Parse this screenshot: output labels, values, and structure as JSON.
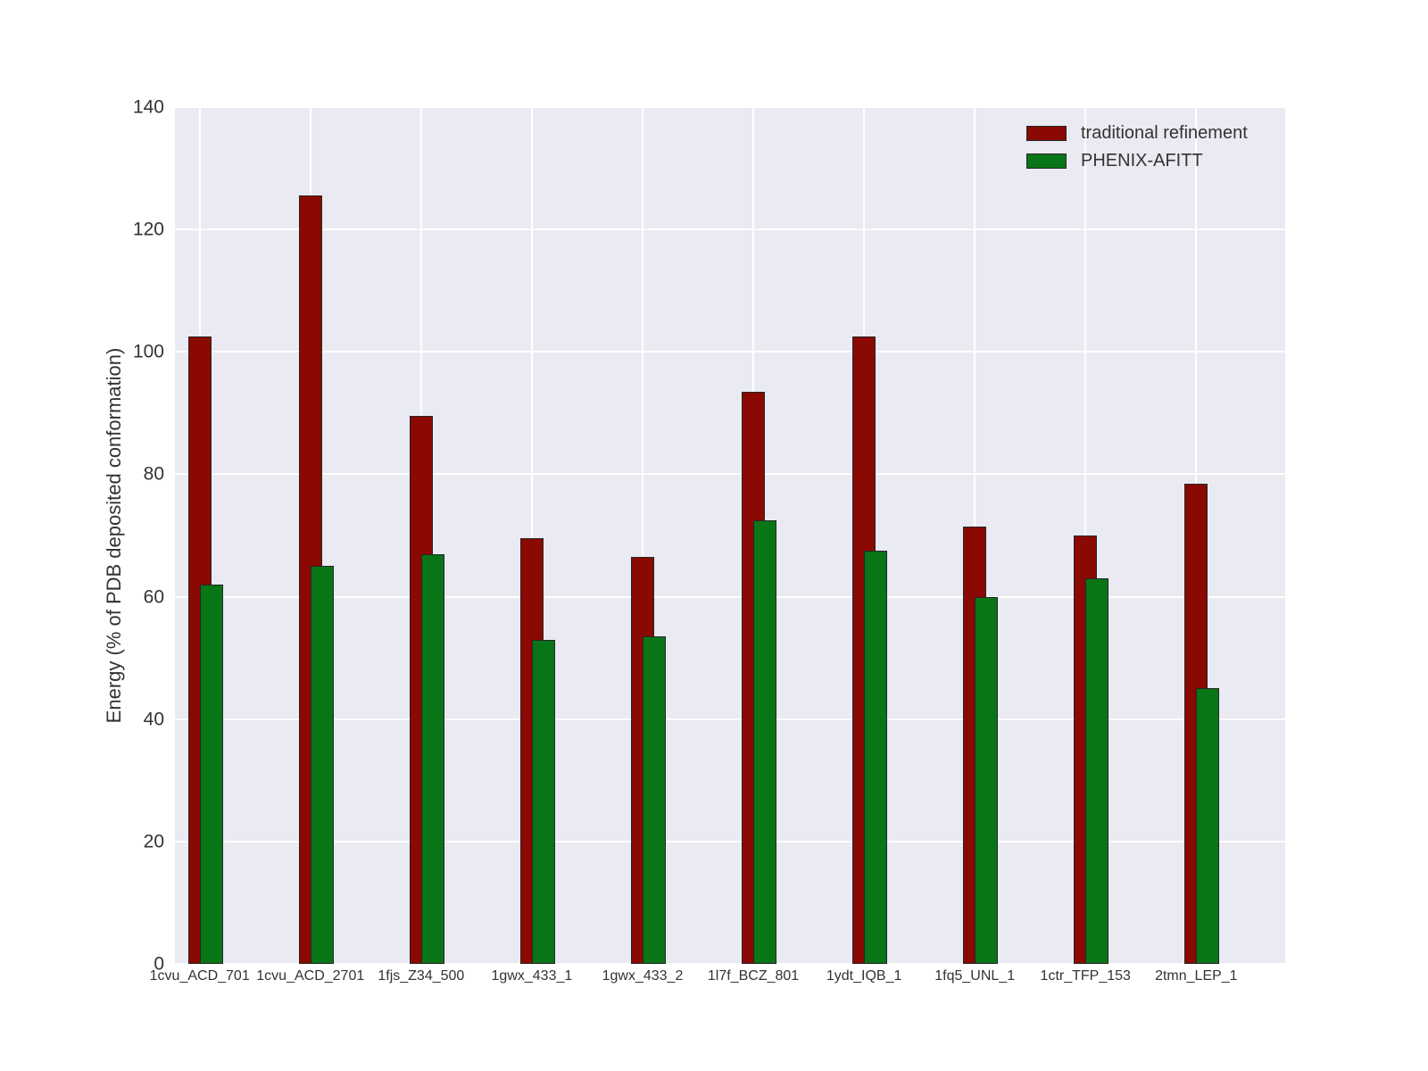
{
  "figure": {
    "background_color": "#ffffff",
    "plot_background_color": "#e9eaf2",
    "grid_color": "#ffffff",
    "bar_edge_color": "#262626",
    "text_color": "#333333"
  },
  "y_axis": {
    "label": "Energy (% of PDB deposited conformation)",
    "ticks": [
      0,
      20,
      40,
      60,
      80,
      100,
      120,
      140
    ]
  },
  "legend": {
    "items": [
      {
        "label": "traditional refinement",
        "color": "#8a0902"
      },
      {
        "label": "PHENIX-AFITT",
        "color": "#087517"
      }
    ]
  },
  "chart_data": {
    "type": "bar",
    "title": "",
    "xlabel": "",
    "ylabel": "Energy (% of PDB deposited conformation)",
    "ylim": [
      0,
      140
    ],
    "grid": true,
    "legend_position": "upper right",
    "bar_style": "overlapping-pairs",
    "categories": [
      "1cvu_ACD_701",
      "1cvu_ACD_2701",
      "1fjs_Z34_500",
      "1gwx_433_1",
      "1gwx_433_2",
      "1l7f_BCZ_801",
      "1ydt_IQB_1",
      "1fq5_UNL_1",
      "1ctr_TFP_153",
      "2tmn_LEP_1"
    ],
    "series": [
      {
        "name": "traditional refinement",
        "color": "#8a0902",
        "values": [
          102.5,
          125.5,
          89.5,
          69.5,
          66.5,
          93.5,
          102.5,
          71.5,
          70.0,
          78.5
        ]
      },
      {
        "name": "PHENIX-AFITT",
        "color": "#087517",
        "values": [
          62.0,
          65.0,
          67.0,
          53.0,
          53.5,
          72.5,
          67.5,
          60.0,
          63.0,
          45.0
        ]
      }
    ]
  }
}
